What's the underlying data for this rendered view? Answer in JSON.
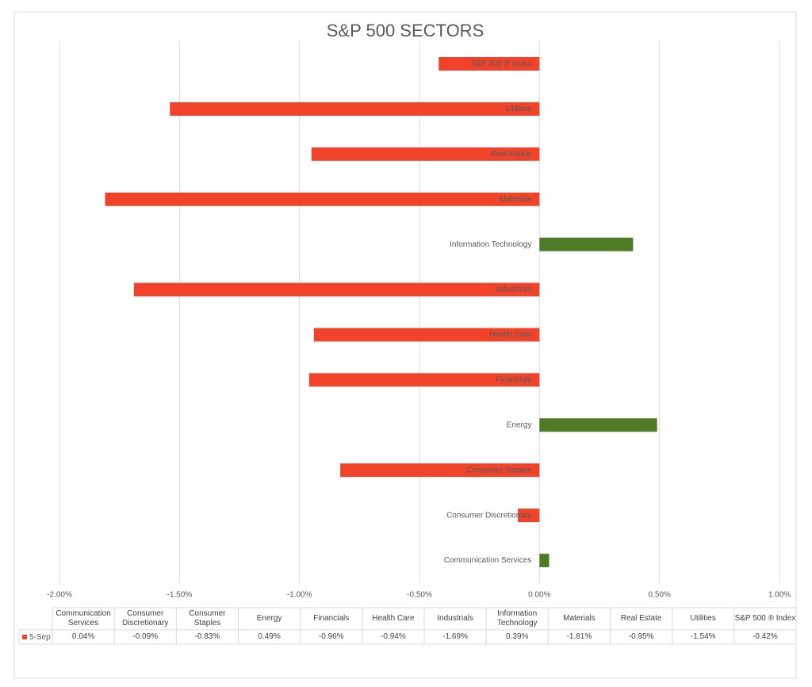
{
  "chart_data": {
    "type": "bar",
    "orientation": "horizontal",
    "title": "S&P 500 SECTORS",
    "categories": [
      "Communication Services",
      "Consumer Discretionary",
      "Consumer Staples",
      "Energy",
      "Financials",
      "Health Care",
      "Industrials",
      "Information Technology",
      "Materials",
      "Real Estate",
      "Utilities",
      "S&P 500 ® Index"
    ],
    "series": [
      {
        "name": "5-Sep",
        "color": "#f1432a",
        "positive_color": "#4e7b25",
        "values": [
          0.04,
          -0.09,
          -0.83,
          0.49,
          -0.96,
          -0.94,
          -1.69,
          0.39,
          -1.81,
          -0.95,
          -1.54,
          -0.42
        ],
        "value_labels": [
          "0.04%",
          "-0.09%",
          "-0.83%",
          "0.49%",
          "-0.96%",
          "-0.94%",
          "-1.69%",
          "0.39%",
          "-1.81%",
          "-0.95%",
          "-1.54%",
          "-0.42%"
        ]
      }
    ],
    "xlim": [
      -2,
      1
    ],
    "xticks": [
      {
        "value": -2,
        "label": "-2.00%"
      },
      {
        "value": -1.5,
        "label": "-1.50%"
      },
      {
        "value": -1,
        "label": "-1.00%"
      },
      {
        "value": -0.5,
        "label": "-0.50%"
      },
      {
        "value": 0,
        "label": "0.00%"
      },
      {
        "value": 0.5,
        "label": "0.50%"
      },
      {
        "value": 1,
        "label": "1.00%"
      }
    ],
    "grid": true,
    "data_table": true
  }
}
